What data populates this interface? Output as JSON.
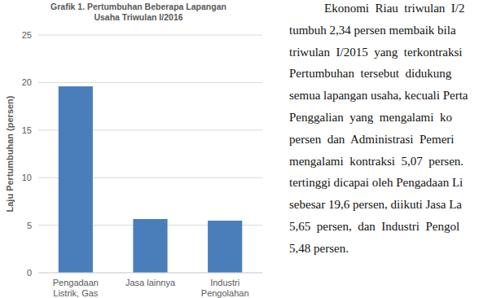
{
  "chart_data": {
    "type": "bar",
    "title": "Grafik 1. Pertumbuhan Beberapa Lapangan Usaha Triwulan I/2016",
    "y_label": "Laju Pertumbuhan (persen)",
    "categories": [
      "Pengadaan Listrik, Gas",
      "Jasa lainnya",
      "Industri Pengolahan"
    ],
    "values": [
      19.6,
      5.65,
      5.48
    ],
    "color": "#4a7ebb",
    "ylim": [
      0,
      25
    ],
    "yticks": [
      0,
      5,
      10,
      15,
      20,
      25
    ],
    "grid": true
  },
  "document": {
    "lines": [
      "Ekonomi  Riau  triwulan  I/2",
      "tumbuh 2,34 persen membaik bila",
      "triwulan  I/2015  yang  terkontraksi",
      "Pertumbuhan  tersebut  didukung",
      "semua lapangan usaha, kecuali Perta",
      "Penggalian  yang  mengalami  ko",
      "persen  dan  Administrasi  Pemeri",
      "mengalami  kontraksi  5,07  persen.",
      "tertinggi dicapai oleh Pengadaan Li",
      "sebesar 19,6 persen, diikuti Jasa La",
      "5,65  persen,  dan  Industri  Pengol",
      "5,48 persen."
    ]
  }
}
